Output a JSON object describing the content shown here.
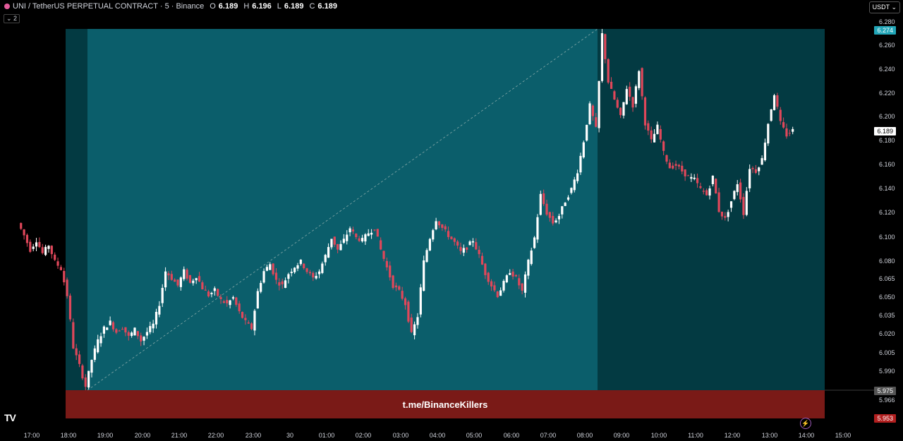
{
  "legend": {
    "symbol": "UNI / TetherUS PERPETUAL CONTRACT · 5 · Binance",
    "o_label": "O",
    "o_value": "6.189",
    "h_label": "H",
    "h_value": "6.196",
    "l_label": "L",
    "l_value": "6.189",
    "c_label": "C",
    "c_value": "6.189"
  },
  "collapse_badge": "⌄ 2",
  "currency_button": "USDT ⌄",
  "price_tags": {
    "target": "6.274",
    "current": "6.189",
    "entry": "5.975",
    "stop": "5.953"
  },
  "banner_text": "t.me/BinanceKillers",
  "logo_text": "TV",
  "colors": {
    "up": "#ffffff",
    "down": "#e0475a",
    "profit_zone": "#0b5e6b",
    "extended_zone": "#033a42",
    "stop_zone": "#7a1a17",
    "tag_target": "#22a6b8"
  },
  "chart_data": {
    "type": "candlestick",
    "y_ticks": [
      "6.280",
      "6.260",
      "6.240",
      "6.220",
      "6.200",
      "6.180",
      "6.160",
      "6.140",
      "6.120",
      "6.100",
      "6.080",
      "6.065",
      "6.050",
      "6.035",
      "6.020",
      "6.005",
      "5.990",
      "5.966"
    ],
    "x_ticks": [
      "17:00",
      "18:00",
      "19:00",
      "20:00",
      "21:00",
      "22:00",
      "23:00",
      "30",
      "01:00",
      "02:00",
      "03:00",
      "04:00",
      "05:00",
      "06:00",
      "07:00",
      "08:00",
      "09:00",
      "10:00",
      "11:00",
      "12:00",
      "13:00",
      "14:00",
      "15:00"
    ],
    "close_path": [
      [
        "16:40",
        6.112
      ],
      [
        "16:50",
        6.102
      ],
      [
        "17:00",
        6.09
      ],
      [
        "17:10",
        6.098
      ],
      [
        "17:20",
        6.087
      ],
      [
        "17:30",
        6.094
      ],
      [
        "17:40",
        6.08
      ],
      [
        "17:50",
        6.074
      ],
      [
        "18:00",
        6.052
      ],
      [
        "18:10",
        6.01
      ],
      [
        "18:20",
        5.995
      ],
      [
        "18:30",
        5.978
      ],
      [
        "18:40",
        6.0
      ],
      [
        "18:50",
        6.015
      ],
      [
        "19:00",
        6.025
      ],
      [
        "19:10",
        6.03
      ],
      [
        "19:20",
        6.022
      ],
      [
        "19:30",
        6.026
      ],
      [
        "19:40",
        6.018
      ],
      [
        "19:50",
        6.024
      ],
      [
        "20:00",
        6.015
      ],
      [
        "20:10",
        6.022
      ],
      [
        "20:20",
        6.028
      ],
      [
        "20:30",
        6.045
      ],
      [
        "20:40",
        6.072
      ],
      [
        "20:50",
        6.066
      ],
      [
        "21:00",
        6.06
      ],
      [
        "21:10",
        6.072
      ],
      [
        "21:20",
        6.062
      ],
      [
        "21:30",
        6.068
      ],
      [
        "21:40",
        6.058
      ],
      [
        "21:50",
        6.052
      ],
      [
        "22:00",
        6.056
      ],
      [
        "22:10",
        6.048
      ],
      [
        "22:20",
        6.045
      ],
      [
        "22:30",
        6.05
      ],
      [
        "22:40",
        6.038
      ],
      [
        "22:50",
        6.03
      ],
      [
        "23:00",
        6.025
      ],
      [
        "23:10",
        6.055
      ],
      [
        "23:20",
        6.072
      ],
      [
        "23:30",
        6.078
      ],
      [
        "23:40",
        6.064
      ],
      [
        "23:50",
        6.06
      ],
      [
        "00:00",
        6.07
      ],
      [
        "00:10",
        6.076
      ],
      [
        "00:20",
        6.08
      ],
      [
        "00:30",
        6.072
      ],
      [
        "00:40",
        6.066
      ],
      [
        "00:50",
        6.072
      ],
      [
        "01:00",
        6.085
      ],
      [
        "01:10",
        6.1
      ],
      [
        "01:20",
        6.09
      ],
      [
        "01:30",
        6.098
      ],
      [
        "01:40",
        6.108
      ],
      [
        "01:50",
        6.1
      ],
      [
        "02:00",
        6.098
      ],
      [
        "02:10",
        6.104
      ],
      [
        "02:20",
        6.108
      ],
      [
        "02:30",
        6.09
      ],
      [
        "02:40",
        6.075
      ],
      [
        "02:50",
        6.06
      ],
      [
        "03:00",
        6.055
      ],
      [
        "03:10",
        6.045
      ],
      [
        "03:20",
        6.02
      ],
      [
        "03:30",
        6.035
      ],
      [
        "03:40",
        6.08
      ],
      [
        "03:50",
        6.1
      ],
      [
        "04:00",
        6.115
      ],
      [
        "04:10",
        6.108
      ],
      [
        "04:20",
        6.102
      ],
      [
        "04:30",
        6.096
      ],
      [
        "04:40",
        6.088
      ],
      [
        "04:50",
        6.092
      ],
      [
        "05:00",
        6.098
      ],
      [
        "05:10",
        6.085
      ],
      [
        "05:20",
        6.07
      ],
      [
        "05:30",
        6.06
      ],
      [
        "05:40",
        6.052
      ],
      [
        "05:50",
        6.062
      ],
      [
        "06:00",
        6.072
      ],
      [
        "06:10",
        6.066
      ],
      [
        "06:20",
        6.055
      ],
      [
        "06:30",
        6.08
      ],
      [
        "06:40",
        6.1
      ],
      [
        "06:50",
        6.135
      ],
      [
        "07:00",
        6.12
      ],
      [
        "07:10",
        6.112
      ],
      [
        "07:20",
        6.118
      ],
      [
        "07:30",
        6.13
      ],
      [
        "07:40",
        6.14
      ],
      [
        "07:50",
        6.155
      ],
      [
        "08:00",
        6.18
      ],
      [
        "08:10",
        6.21
      ],
      [
        "08:20",
        6.19
      ],
      [
        "08:30",
        6.27
      ],
      [
        "08:40",
        6.23
      ],
      [
        "08:50",
        6.215
      ],
      [
        "09:00",
        6.2
      ],
      [
        "09:10",
        6.225
      ],
      [
        "09:20",
        6.21
      ],
      [
        "09:30",
        6.24
      ],
      [
        "09:40",
        6.195
      ],
      [
        "09:50",
        6.18
      ],
      [
        "10:00",
        6.192
      ],
      [
        "10:10",
        6.17
      ],
      [
        "10:20",
        6.158
      ],
      [
        "10:30",
        6.16
      ],
      [
        "10:40",
        6.155
      ],
      [
        "10:50",
        6.15
      ],
      [
        "11:00",
        6.148
      ],
      [
        "11:10",
        6.14
      ],
      [
        "11:20",
        6.135
      ],
      [
        "11:30",
        6.15
      ],
      [
        "11:40",
        6.122
      ],
      [
        "11:50",
        6.115
      ],
      [
        "12:00",
        6.13
      ],
      [
        "12:10",
        6.145
      ],
      [
        "12:20",
        6.12
      ],
      [
        "12:30",
        6.158
      ],
      [
        "12:40",
        6.155
      ],
      [
        "12:50",
        6.165
      ],
      [
        "13:00",
        6.195
      ],
      [
        "13:10",
        6.22
      ],
      [
        "13:20",
        6.195
      ],
      [
        "13:30",
        6.185
      ],
      [
        "13:40",
        6.189
      ]
    ]
  }
}
